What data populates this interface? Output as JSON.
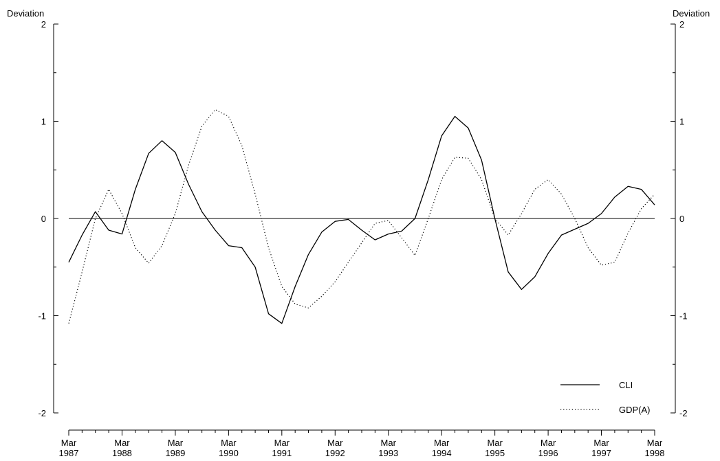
{
  "chart_data": {
    "type": "line",
    "title": "",
    "y_left_label": "Deviation",
    "y_right_label": "Deviation",
    "ylim": [
      -2,
      2
    ],
    "yticks": [
      -2,
      -1,
      0,
      1,
      2
    ],
    "ytick_labels": [
      "-2",
      "-1",
      "0",
      "1",
      "2"
    ],
    "xlim": [
      1987.0,
      1998.0
    ],
    "xticks": [
      {
        "x": 1987,
        "month": "Mar",
        "year": "1987"
      },
      {
        "x": 1988,
        "month": "Mar",
        "year": "1988"
      },
      {
        "x": 1989,
        "month": "Mar",
        "year": "1989"
      },
      {
        "x": 1990,
        "month": "Mar",
        "year": "1990"
      },
      {
        "x": 1991,
        "month": "Mar",
        "year": "1991"
      },
      {
        "x": 1992,
        "month": "Mar",
        "year": "1992"
      },
      {
        "x": 1993,
        "month": "Mar",
        "year": "1993"
      },
      {
        "x": 1994,
        "month": "Mar",
        "year": "1994"
      },
      {
        "x": 1995,
        "month": "Mar",
        "year": "1995"
      },
      {
        "x": 1996,
        "month": "Mar",
        "year": "1996"
      },
      {
        "x": 1997,
        "month": "Mar",
        "year": "1997"
      },
      {
        "x": 1998,
        "month": "Mar",
        "year": "1998"
      }
    ],
    "zero_line": true,
    "legend_position": "bottom-right",
    "series": [
      {
        "name": "CLI",
        "style": "solid",
        "color": "#000000",
        "x": [
          1987.0,
          1987.25,
          1987.5,
          1987.75,
          1988.0,
          1988.25,
          1988.5,
          1988.75,
          1989.0,
          1989.25,
          1989.5,
          1989.75,
          1990.0,
          1990.25,
          1990.5,
          1990.75,
          1991.0,
          1991.25,
          1991.5,
          1991.75,
          1992.0,
          1992.25,
          1992.5,
          1992.75,
          1993.0,
          1993.25,
          1993.5,
          1993.75,
          1994.0,
          1994.25,
          1994.5,
          1994.75,
          1995.0,
          1995.25,
          1995.5,
          1995.75,
          1996.0,
          1996.25,
          1996.5,
          1996.75,
          1997.0,
          1997.25,
          1997.5,
          1997.75,
          1998.0
        ],
        "y": [
          -0.45,
          -0.17,
          0.07,
          -0.12,
          -0.16,
          0.3,
          0.67,
          0.8,
          0.68,
          0.35,
          0.07,
          -0.12,
          -0.28,
          -0.3,
          -0.5,
          -0.98,
          -1.08,
          -0.7,
          -0.37,
          -0.14,
          -0.03,
          -0.01,
          -0.12,
          -0.22,
          -0.16,
          -0.13,
          0.0,
          0.4,
          0.85,
          1.05,
          0.93,
          0.6,
          0.0,
          -0.55,
          -0.73,
          -0.6,
          -0.36,
          -0.17,
          -0.11,
          -0.05,
          0.05,
          0.22,
          0.33,
          0.3,
          0.14
        ]
      },
      {
        "name": "GDP(A)",
        "style": "dotted",
        "color": "#000000",
        "x": [
          1987.0,
          1987.25,
          1987.5,
          1987.75,
          1988.0,
          1988.25,
          1988.5,
          1988.75,
          1989.0,
          1989.25,
          1989.5,
          1989.75,
          1990.0,
          1990.25,
          1990.5,
          1990.75,
          1991.0,
          1991.25,
          1991.5,
          1991.75,
          1992.0,
          1992.25,
          1992.5,
          1992.75,
          1993.0,
          1993.25,
          1993.5,
          1993.75,
          1994.0,
          1994.25,
          1994.5,
          1994.75,
          1995.0,
          1995.25,
          1995.5,
          1995.75,
          1996.0,
          1996.25,
          1996.5,
          1996.75,
          1997.0,
          1997.25,
          1997.5,
          1997.75,
          1998.0
        ],
        "y": [
          -1.08,
          -0.55,
          0.0,
          0.3,
          0.05,
          -0.3,
          -0.46,
          -0.28,
          0.05,
          0.55,
          0.95,
          1.12,
          1.05,
          0.75,
          0.25,
          -0.3,
          -0.7,
          -0.88,
          -0.92,
          -0.8,
          -0.65,
          -0.45,
          -0.25,
          -0.05,
          -0.02,
          -0.2,
          -0.38,
          0.0,
          0.4,
          0.63,
          0.62,
          0.4,
          0.0,
          -0.17,
          0.05,
          0.3,
          0.4,
          0.25,
          0.0,
          -0.3,
          -0.48,
          -0.45,
          -0.15,
          0.1,
          0.25
        ]
      }
    ]
  }
}
